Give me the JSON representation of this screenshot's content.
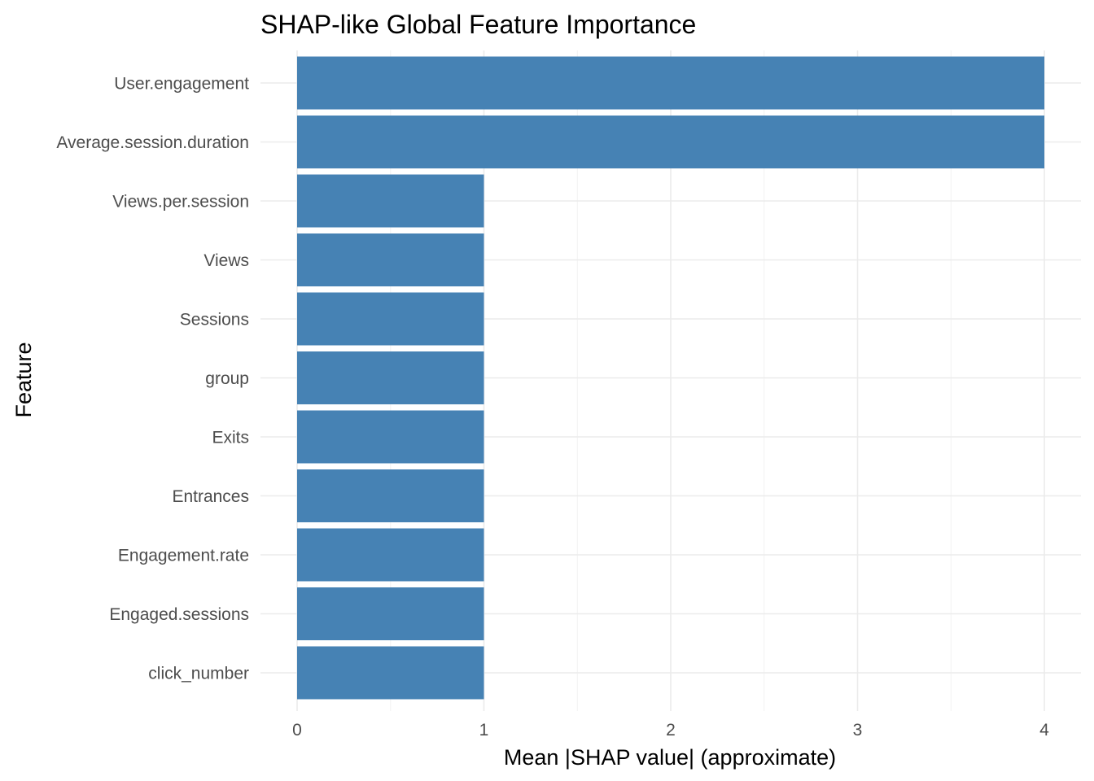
{
  "chart_data": {
    "type": "bar",
    "orientation": "horizontal",
    "title": "SHAP-like Global Feature Importance",
    "xlabel": "Mean |SHAP value| (approximate)",
    "ylabel": "Feature",
    "xlim": [
      0,
      4
    ],
    "x_ticks": [
      0,
      1,
      2,
      3,
      4
    ],
    "grid": true,
    "bar_color": "#4682B4",
    "categories": [
      "User.engagement",
      "Average.session.duration",
      "Views.per.session",
      "Views",
      "Sessions",
      "group",
      "Exits",
      "Entrances",
      "Engagement.rate",
      "Engaged.sessions",
      "click_number"
    ],
    "values": [
      4,
      4,
      1,
      1,
      1,
      1,
      1,
      1,
      1,
      1,
      1
    ]
  }
}
